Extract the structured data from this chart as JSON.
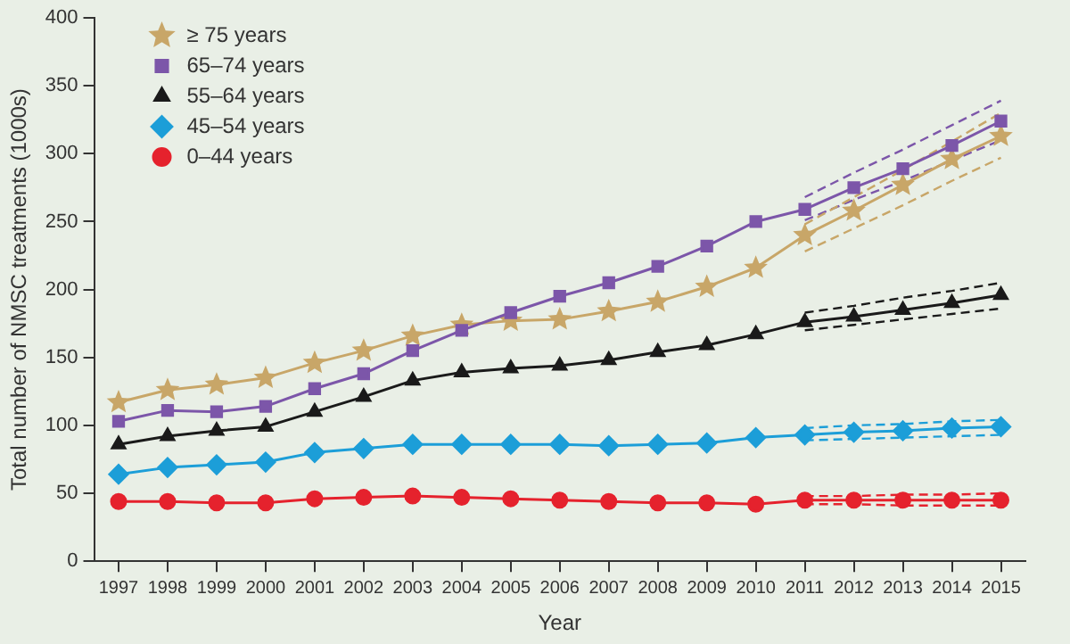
{
  "chart_data": {
    "type": "line",
    "xlabel": "Year",
    "ylabel": "Total number of NMSC treatments (1000s)",
    "categories": [
      "1997",
      "1998",
      "1999",
      "2000",
      "2001",
      "2002",
      "2003",
      "2004",
      "2005",
      "2006",
      "2007",
      "2008",
      "2009",
      "2010",
      "2011",
      "2012",
      "2013",
      "2014",
      "2015"
    ],
    "ylim": [
      0,
      400
    ],
    "yticks": [
      0,
      50,
      100,
      150,
      200,
      250,
      300,
      350,
      400
    ],
    "grid": false,
    "legend": "top left",
    "line_style": "solid",
    "series": [
      {
        "name": "≥ 75 years",
        "color": "#c8a668",
        "marker": "star",
        "values": [
          117,
          126,
          130,
          135,
          146,
          155,
          166,
          174,
          177,
          178,
          184,
          191,
          202,
          216,
          240,
          258,
          277,
          296,
          313
        ]
      },
      {
        "name": "65–74 years",
        "color": "#7c56a9",
        "marker": "square",
        "values": [
          103,
          111,
          110,
          114,
          127,
          138,
          155,
          170,
          183,
          195,
          205,
          217,
          232,
          250,
          259,
          275,
          289,
          306,
          324
        ]
      },
      {
        "name": "55–64 years",
        "color": "#1a1a1a",
        "marker": "triangle",
        "values": [
          86,
          92,
          96,
          99,
          110,
          121,
          133,
          139,
          142,
          144,
          148,
          154,
          159,
          167,
          176,
          180,
          185,
          190,
          196
        ]
      },
      {
        "name": "45–54 years",
        "color": "#1c9ed8",
        "marker": "diamond",
        "values": [
          64,
          69,
          71,
          73,
          80,
          83,
          86,
          86,
          86,
          86,
          85,
          86,
          87,
          91,
          93,
          95,
          96,
          98,
          99
        ]
      },
      {
        "name": "0–44 years",
        "color": "#e5222d",
        "marker": "circle",
        "values": [
          44,
          44,
          43,
          43,
          46,
          47,
          48,
          47,
          46,
          45,
          44,
          43,
          43,
          42,
          45,
          45,
          45,
          45,
          45
        ]
      },
      {
        "color": "#c8a668",
        "marker": "none",
        "line_style": "dashed",
        "values": [
          null,
          null,
          null,
          null,
          null,
          null,
          null,
          null,
          null,
          null,
          null,
          null,
          null,
          null,
          228,
          245,
          262,
          280,
          297
        ]
      },
      {
        "color": "#c8a668",
        "marker": "none",
        "line_style": "dashed",
        "values": [
          null,
          null,
          null,
          null,
          null,
          null,
          null,
          null,
          null,
          null,
          null,
          null,
          null,
          null,
          248,
          268,
          288,
          309,
          330
        ]
      },
      {
        "color": "#7c56a9",
        "marker": "none",
        "line_style": "dashed",
        "values": [
          null,
          null,
          null,
          null,
          null,
          null,
          null,
          null,
          null,
          null,
          null,
          null,
          null,
          null,
          251,
          266,
          280,
          295,
          310
        ]
      },
      {
        "color": "#7c56a9",
        "marker": "none",
        "line_style": "dashed",
        "values": [
          null,
          null,
          null,
          null,
          null,
          null,
          null,
          null,
          null,
          null,
          null,
          null,
          null,
          null,
          268,
          286,
          303,
          321,
          339
        ]
      },
      {
        "color": "#1a1a1a",
        "marker": "none",
        "line_style": "dashed",
        "values": [
          null,
          null,
          null,
          null,
          null,
          null,
          null,
          null,
          null,
          null,
          null,
          null,
          null,
          null,
          170,
          174,
          178,
          182,
          186
        ]
      },
      {
        "color": "#1a1a1a",
        "marker": "none",
        "line_style": "dashed",
        "values": [
          null,
          null,
          null,
          null,
          null,
          null,
          null,
          null,
          null,
          null,
          null,
          null,
          null,
          null,
          183,
          188,
          194,
          199,
          205
        ]
      },
      {
        "color": "#1c9ed8",
        "marker": "none",
        "line_style": "dashed",
        "values": [
          null,
          null,
          null,
          null,
          null,
          null,
          null,
          null,
          null,
          null,
          null,
          null,
          null,
          null,
          89,
          90,
          91,
          92,
          93
        ]
      },
      {
        "color": "#1c9ed8",
        "marker": "none",
        "line_style": "dashed",
        "values": [
          null,
          null,
          null,
          null,
          null,
          null,
          null,
          null,
          null,
          null,
          null,
          null,
          null,
          null,
          98,
          100,
          101,
          103,
          104
        ]
      },
      {
        "color": "#e5222d",
        "marker": "none",
        "line_style": "dashed",
        "values": [
          null,
          null,
          null,
          null,
          null,
          null,
          null,
          null,
          null,
          null,
          null,
          null,
          null,
          null,
          42,
          42,
          41,
          41,
          41
        ]
      },
      {
        "color": "#e5222d",
        "marker": "none",
        "line_style": "dashed",
        "values": [
          null,
          null,
          null,
          null,
          null,
          null,
          null,
          null,
          null,
          null,
          null,
          null,
          null,
          null,
          48,
          48,
          49,
          49,
          50
        ]
      }
    ]
  }
}
